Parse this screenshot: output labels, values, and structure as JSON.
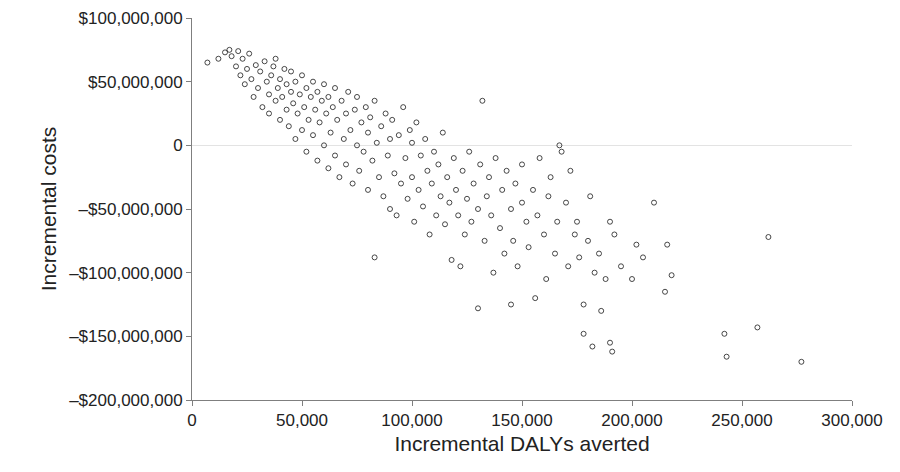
{
  "chart_data": {
    "type": "scatter",
    "x_label": "Incremental DALYs averted",
    "y_label": "Incremental costs",
    "marker": "circle-open",
    "color": "#1a1a1a",
    "grid": false,
    "xlim": [
      0,
      300000
    ],
    "ylim": [
      -200000000,
      100000000
    ],
    "xticks": [
      0,
      {
        "value": 50000,
        "label": "50,000"
      },
      {
        "value": 100000,
        "label": "100,000"
      },
      {
        "value": 150000,
        "label": "150,000"
      },
      {
        "value": 200000,
        "label": "200,000"
      },
      {
        "value": 250000,
        "label": "250,000"
      },
      {
        "value": 300000,
        "label": "300,000"
      }
    ],
    "yticks": [
      {
        "value": -200000000,
        "label": "–$200,000,000"
      },
      {
        "value": -150000000,
        "label": "–$150,000,000"
      },
      {
        "value": -100000000,
        "label": "–$100,000,000"
      },
      {
        "value": -50000000,
        "label": "–$50,000,000"
      },
      0,
      {
        "value": 50000000,
        "label": "$50,000,000"
      },
      {
        "value": 100000000,
        "label": "$100,000,000"
      }
    ],
    "x": [
      7000,
      12000,
      15000,
      17000,
      18000,
      20000,
      21000,
      22000,
      23000,
      24000,
      25000,
      26000,
      27000,
      28000,
      29000,
      30000,
      31000,
      32000,
      33000,
      34000,
      35000,
      35000,
      36000,
      37000,
      38000,
      38000,
      39000,
      40000,
      40000,
      41000,
      42000,
      43000,
      43000,
      44000,
      45000,
      45000,
      46000,
      47000,
      47000,
      48000,
      49000,
      50000,
      50000,
      51000,
      52000,
      52000,
      53000,
      54000,
      55000,
      55000,
      56000,
      57000,
      57000,
      58000,
      59000,
      60000,
      60000,
      61000,
      62000,
      62000,
      63000,
      64000,
      65000,
      65000,
      66000,
      67000,
      68000,
      69000,
      70000,
      70000,
      71000,
      72000,
      73000,
      74000,
      75000,
      75000,
      76000,
      77000,
      78000,
      79000,
      80000,
      80000,
      81000,
      82000,
      83000,
      83000,
      84000,
      85000,
      86000,
      87000,
      88000,
      89000,
      90000,
      90000,
      91000,
      92000,
      93000,
      94000,
      95000,
      96000,
      97000,
      98000,
      99000,
      100000,
      100000,
      101000,
      102000,
      103000,
      104000,
      105000,
      106000,
      107000,
      108000,
      109000,
      110000,
      111000,
      112000,
      113000,
      114000,
      115000,
      116000,
      117000,
      118000,
      119000,
      120000,
      121000,
      122000,
      123000,
      124000,
      125000,
      126000,
      127000,
      128000,
      130000,
      130000,
      131000,
      132000,
      133000,
      134000,
      135000,
      136000,
      137000,
      138000,
      140000,
      141000,
      142000,
      143000,
      145000,
      145000,
      146000,
      147000,
      148000,
      150000,
      150000,
      152000,
      153000,
      155000,
      156000,
      157000,
      158000,
      160000,
      161000,
      162000,
      163000,
      165000,
      166000,
      167000,
      168000,
      170000,
      171000,
      172000,
      174000,
      175000,
      176000,
      178000,
      178000,
      180000,
      181000,
      182000,
      183000,
      185000,
      186000,
      188000,
      190000,
      190000,
      191000,
      192000,
      195000,
      200000,
      202000,
      205000,
      210000,
      215000,
      216000,
      218000,
      242000,
      243000,
      257000,
      262000,
      277000
    ],
    "values": [
      65000000,
      68000000,
      73000000,
      75000000,
      70000000,
      62000000,
      74000000,
      55000000,
      68000000,
      48000000,
      60000000,
      72000000,
      52000000,
      38000000,
      63000000,
      45000000,
      58000000,
      30000000,
      66000000,
      50000000,
      40000000,
      25000000,
      55000000,
      62000000,
      35000000,
      68000000,
      45000000,
      20000000,
      52000000,
      38000000,
      60000000,
      28000000,
      48000000,
      15000000,
      42000000,
      58000000,
      33000000,
      5000000,
      50000000,
      25000000,
      40000000,
      12000000,
      55000000,
      30000000,
      45000000,
      -5000000,
      20000000,
      38000000,
      50000000,
      8000000,
      28000000,
      -12000000,
      42000000,
      18000000,
      35000000,
      0,
      48000000,
      25000000,
      -18000000,
      38000000,
      10000000,
      30000000,
      -8000000,
      45000000,
      20000000,
      -25000000,
      35000000,
      5000000,
      25000000,
      -15000000,
      42000000,
      12000000,
      -30000000,
      28000000,
      0,
      38000000,
      -20000000,
      18000000,
      -5000000,
      30000000,
      -35000000,
      10000000,
      22000000,
      -12000000,
      -88000000,
      35000000,
      2000000,
      -25000000,
      15000000,
      -40000000,
      25000000,
      -8000000,
      5000000,
      -50000000,
      20000000,
      -22000000,
      -55000000,
      8000000,
      -30000000,
      30000000,
      -10000000,
      -42000000,
      12000000,
      -25000000,
      2000000,
      -60000000,
      18000000,
      -35000000,
      -8000000,
      -48000000,
      5000000,
      -20000000,
      -70000000,
      -30000000,
      -5000000,
      -55000000,
      -15000000,
      -40000000,
      10000000,
      -62000000,
      -25000000,
      -45000000,
      -90000000,
      -10000000,
      -35000000,
      -55000000,
      -95000000,
      -20000000,
      -70000000,
      -42000000,
      -5000000,
      -60000000,
      -30000000,
      -128000000,
      -50000000,
      -15000000,
      35000000,
      -75000000,
      -40000000,
      -25000000,
      -55000000,
      -100000000,
      -10000000,
      -65000000,
      -35000000,
      -85000000,
      -20000000,
      -50000000,
      -125000000,
      -75000000,
      -30000000,
      -95000000,
      -45000000,
      -15000000,
      -60000000,
      -80000000,
      -35000000,
      -120000000,
      -55000000,
      -10000000,
      -70000000,
      -105000000,
      -40000000,
      -25000000,
      -85000000,
      -60000000,
      0,
      -5000000,
      -45000000,
      -95000000,
      -20000000,
      -70000000,
      -60000000,
      -88000000,
      -125000000,
      -148000000,
      -75000000,
      -40000000,
      -158000000,
      -100000000,
      -85000000,
      -130000000,
      -105000000,
      -155000000,
      -60000000,
      -162000000,
      -70000000,
      -95000000,
      -105000000,
      -78000000,
      -88000000,
      -45000000,
      -115000000,
      -78000000,
      -102000000,
      -148000000,
      -166000000,
      -143000000,
      -72000000,
      -170000000
    ]
  }
}
